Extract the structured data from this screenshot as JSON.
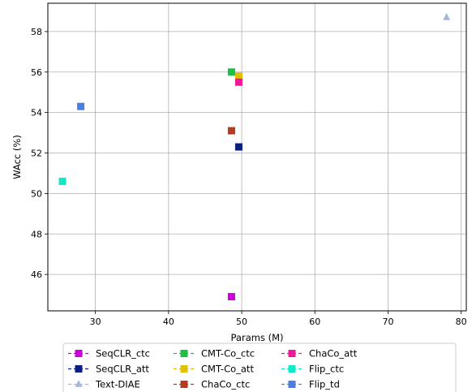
{
  "chart_data": {
    "type": "scatter",
    "xlabel": "Params (M)",
    "ylabel": "WAcc (%)",
    "xlim": [
      23.5,
      80.7
    ],
    "ylim": [
      44.2,
      59.4
    ],
    "xticks": [
      30,
      40,
      50,
      60,
      70,
      80
    ],
    "yticks": [
      46,
      48,
      50,
      52,
      54,
      56,
      58
    ],
    "grid": true,
    "legend_position": "bottom",
    "series": [
      {
        "name": "SeqCLR_ctc",
        "color": "#cc00dd",
        "marker": "square",
        "points": [
          [
            48.6,
            44.9
          ]
        ]
      },
      {
        "name": "SeqCLR_att",
        "color": "#0a1f80",
        "marker": "square",
        "points": [
          [
            49.6,
            52.3
          ]
        ]
      },
      {
        "name": "Text-DIAE",
        "color": "#a3b6dc",
        "marker": "triangle",
        "points": [
          [
            78.0,
            58.7
          ]
        ]
      },
      {
        "name": "CMT-Co_ctc",
        "color": "#1ec043",
        "marker": "square",
        "points": [
          [
            48.6,
            56.0
          ]
        ]
      },
      {
        "name": "CMT-Co_att",
        "color": "#e0c000",
        "marker": "square",
        "points": [
          [
            49.6,
            55.8
          ]
        ]
      },
      {
        "name": "ChaCo_ctc",
        "color": "#b83a1e",
        "marker": "square",
        "points": [
          [
            48.6,
            53.1
          ]
        ]
      },
      {
        "name": "ChaCo_att",
        "color": "#f0189a",
        "marker": "square",
        "points": [
          [
            49.6,
            55.5
          ]
        ]
      },
      {
        "name": "Flip_ctc",
        "color": "#10e8c8",
        "marker": "square",
        "points": [
          [
            25.5,
            50.6
          ]
        ]
      },
      {
        "name": "Flip_td",
        "color": "#4a7ee0",
        "marker": "square",
        "points": [
          [
            28.0,
            54.3
          ]
        ]
      }
    ]
  }
}
